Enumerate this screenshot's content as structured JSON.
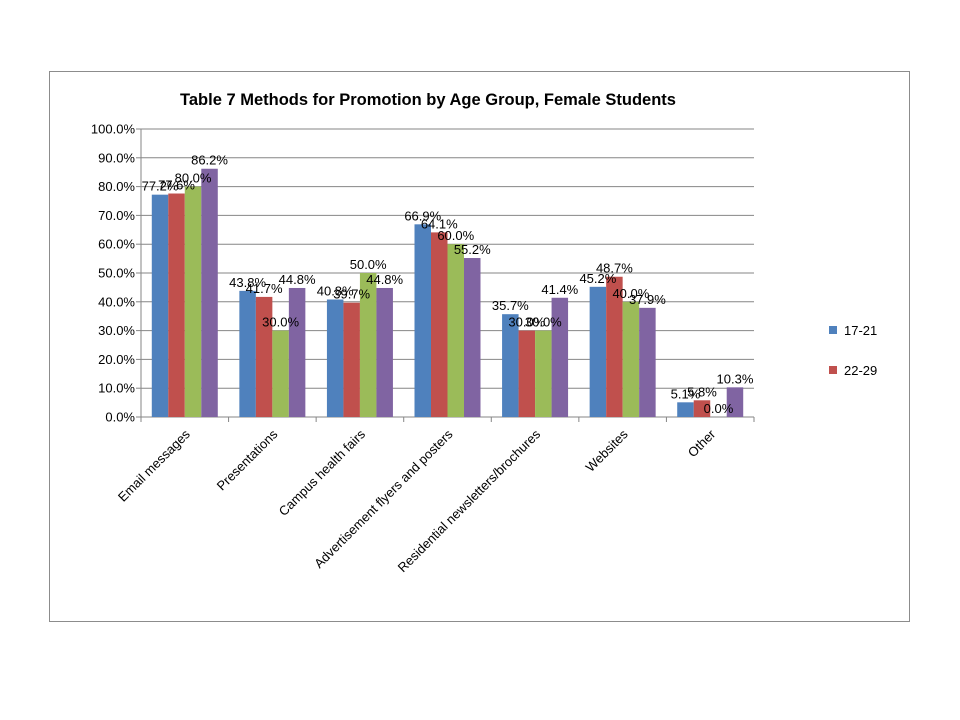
{
  "chart_data": {
    "type": "bar",
    "title": "Table 7    Methods for Promotion by Age Group, Female Students",
    "xlabel": "",
    "ylabel": "",
    "ylim": [
      0,
      100
    ],
    "y_ticks": [
      "0.0%",
      "10.0%",
      "20.0%",
      "30.0%",
      "40.0%",
      "50.0%",
      "60.0%",
      "70.0%",
      "80.0%",
      "90.0%",
      "100.0%"
    ],
    "categories": [
      "Email messages",
      "Presentations",
      "Campus health fairs",
      "Advertisement flyers and posters",
      "Residential newsletters/brochures",
      "Websites",
      "Other"
    ],
    "series": [
      {
        "name": "17-21",
        "color": "#4f81bd",
        "values": [
          77.2,
          43.8,
          40.8,
          66.9,
          35.7,
          45.2,
          5.1
        ],
        "labels": [
          "77.2%",
          "43.8%",
          "40.8%",
          "66.9%",
          "35.7%",
          "45.2%",
          "5.1%"
        ]
      },
      {
        "name": "22-29",
        "color": "#c0504d",
        "values": [
          77.6,
          41.7,
          39.7,
          64.1,
          30.0,
          48.7,
          5.8
        ],
        "labels": [
          "77.6%",
          "41.7%",
          "39.7%",
          "64.1%",
          "30.0%",
          "48.7%",
          "5.8%"
        ]
      },
      {
        "name": "",
        "color": "#9bbb59",
        "values": [
          80.0,
          30.0,
          50.0,
          60.0,
          30.0,
          40.0,
          0.0
        ],
        "labels": [
          "80.0%",
          "30.0%",
          "50.0%",
          "60.0%",
          "30.0%",
          "40.0%",
          "0.0%"
        ]
      },
      {
        "name": "",
        "color": "#8064a2",
        "values": [
          86.2,
          44.8,
          44.8,
          55.2,
          41.4,
          37.9,
          10.3
        ],
        "labels": [
          "86.2%",
          "44.8%",
          "44.8%",
          "55.2%",
          "41.4%",
          "37.9%",
          "10.3%"
        ]
      }
    ],
    "grid": true,
    "legend_position": "right"
  }
}
